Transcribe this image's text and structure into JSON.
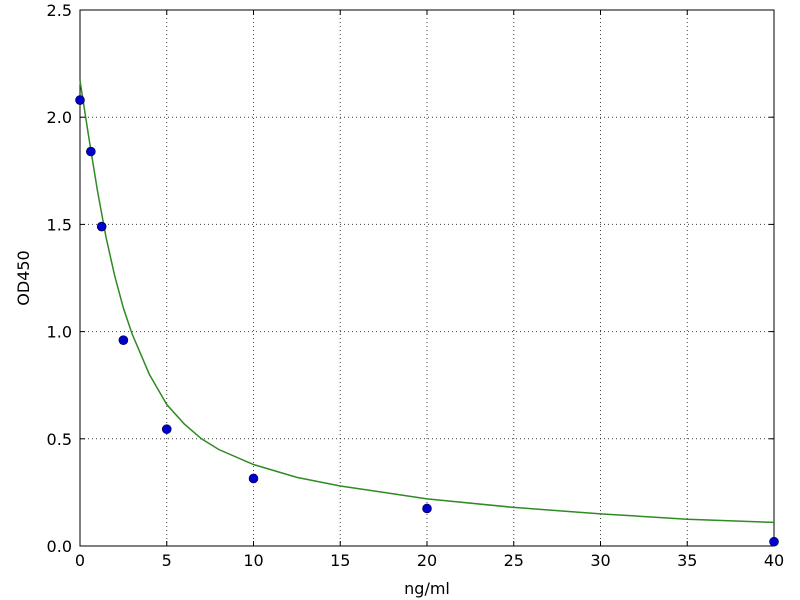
{
  "chart_data": {
    "type": "scatter",
    "title": "",
    "xlabel": "ng/ml",
    "ylabel": "OD450",
    "xlim": [
      0,
      40
    ],
    "ylim": [
      0.0,
      2.5
    ],
    "x_ticks": [
      0,
      5,
      10,
      15,
      20,
      25,
      30,
      35,
      40
    ],
    "x_tick_labels": [
      "0",
      "5",
      "10",
      "15",
      "20",
      "25",
      "30",
      "35",
      "40"
    ],
    "y_ticks": [
      0.0,
      0.5,
      1.0,
      1.5,
      2.0,
      2.5
    ],
    "y_tick_labels": [
      "0.0",
      "0.5",
      "1.0",
      "1.5",
      "2.0",
      "2.5"
    ],
    "grid": true,
    "legend": "none",
    "series": [
      {
        "kind": "points",
        "color": "#0000cc",
        "x": [
          0,
          0.625,
          1.25,
          2.5,
          5,
          10,
          20,
          40
        ],
        "y": [
          2.08,
          1.84,
          1.49,
          0.96,
          0.545,
          0.315,
          0.175,
          0.02
        ]
      },
      {
        "kind": "fit-curve",
        "color": "#2e8b22",
        "x": [
          0,
          0.5,
          1,
          1.5,
          2,
          2.5,
          3,
          4,
          5,
          6,
          7,
          8,
          10,
          12.5,
          15,
          17.5,
          20,
          25,
          30,
          35,
          40
        ],
        "y": [
          2.17,
          1.91,
          1.66,
          1.44,
          1.26,
          1.11,
          0.99,
          0.8,
          0.66,
          0.57,
          0.5,
          0.45,
          0.38,
          0.32,
          0.28,
          0.25,
          0.22,
          0.18,
          0.15,
          0.125,
          0.11
        ]
      }
    ]
  }
}
